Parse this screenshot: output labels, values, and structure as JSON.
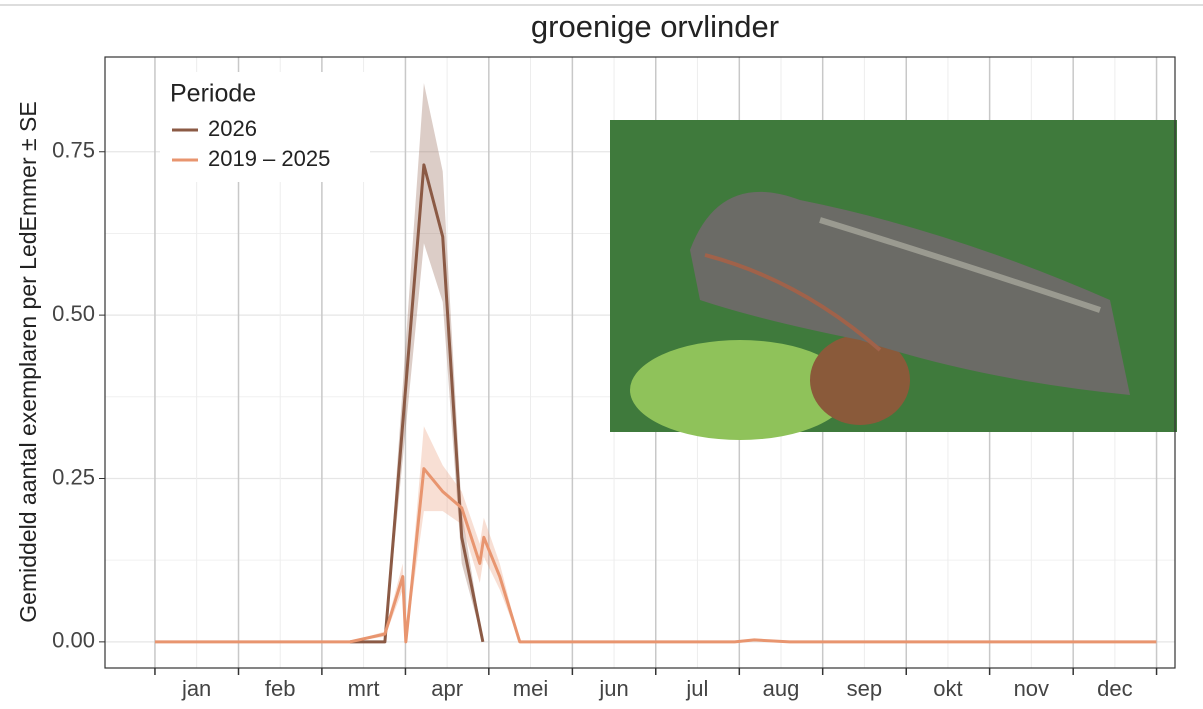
{
  "chart_data": {
    "type": "line",
    "title": "groenige orvlinder",
    "y_label": "Gemiddeld aantal exemplaren per LedEmmer ± SE",
    "legend_title": "Periode",
    "legend_position": "top-left",
    "grid": true,
    "xlim": [
      -2.6,
      53.1
    ],
    "ylim": [
      -0.04,
      0.895
    ],
    "yticks": [
      {
        "value": 0,
        "label": "0.00"
      },
      {
        "value": 0.25,
        "label": "0.25"
      },
      {
        "value": 0.5,
        "label": "0.50"
      },
      {
        "value": 0.75,
        "label": "0.75"
      }
    ],
    "month_boundaries": [
      0,
      4.35,
      8.69,
      13.04,
      17.38,
      21.73,
      26.07,
      30.42,
      34.76,
      39.11,
      43.45,
      47.8,
      52.14
    ],
    "xticks": [
      {
        "value": 2.17,
        "label": "jan"
      },
      {
        "value": 6.52,
        "label": "feb"
      },
      {
        "value": 10.86,
        "label": "mrt"
      },
      {
        "value": 15.21,
        "label": "apr"
      },
      {
        "value": 19.55,
        "label": "mei"
      },
      {
        "value": 23.9,
        "label": "jun"
      },
      {
        "value": 28.24,
        "label": "jul"
      },
      {
        "value": 32.59,
        "label": "aug"
      },
      {
        "value": 36.93,
        "label": "sep"
      },
      {
        "value": 41.28,
        "label": "okt"
      },
      {
        "value": 45.62,
        "label": "nov"
      },
      {
        "value": 49.97,
        "label": "dec"
      }
    ],
    "series": [
      {
        "name": "2026",
        "color": "#8b5a45",
        "x": [
          10.15,
          11.97,
          14.0,
          14.98,
          15.97,
          17.07
        ],
        "values": [
          0,
          0,
          0.73,
          0.62,
          0.16,
          0
        ],
        "lower": [
          0,
          0,
          0.61,
          0.52,
          0.12,
          0
        ],
        "upper": [
          0,
          0,
          0.855,
          0.72,
          0.2,
          0
        ]
      },
      {
        "name": "2019 – 2025",
        "color": "#e8956f",
        "x": [
          0,
          10.15,
          11.97,
          12.9,
          13.06,
          14.0,
          14.98,
          15.97,
          16.91,
          17.12,
          17.95,
          18.99,
          30.18,
          31.2,
          33.04,
          52.13
        ],
        "values": [
          0,
          0,
          0.012,
          0.1,
          0,
          0.265,
          0.23,
          0.205,
          0.12,
          0.16,
          0.1,
          0,
          0,
          0.003,
          0,
          0
        ],
        "lower": [
          0,
          0,
          0.008,
          0.08,
          0,
          0.2,
          0.2,
          0.18,
          0.09,
          0.13,
          0.08,
          0,
          0,
          0.001,
          0,
          0
        ],
        "upper": [
          0,
          0,
          0.016,
          0.12,
          0,
          0.33,
          0.27,
          0.23,
          0.15,
          0.19,
          0.12,
          0,
          0,
          0.005,
          0,
          0
        ]
      }
    ]
  }
}
